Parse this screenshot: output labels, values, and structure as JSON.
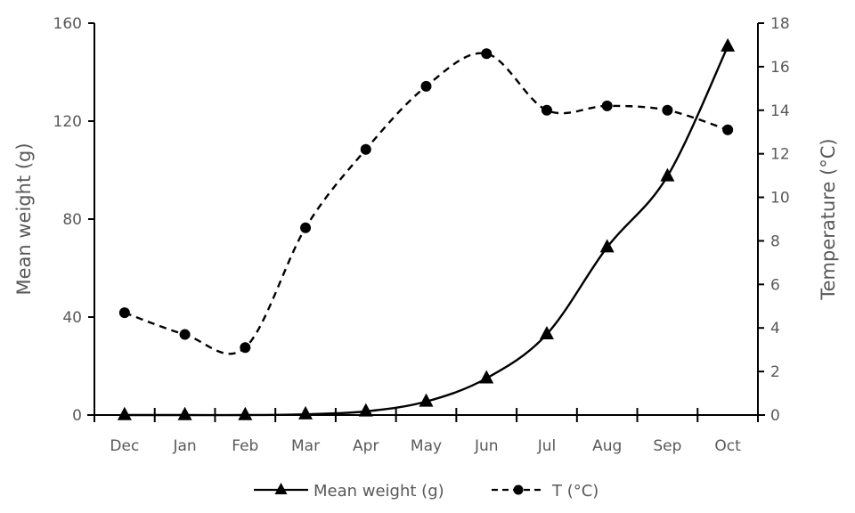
{
  "chart_data": {
    "type": "line",
    "title": "",
    "categories": [
      "Dec",
      "Jan",
      "Feb",
      "Mar",
      "Apr",
      "May",
      "Jun",
      "Jul",
      "Aug",
      "Sep",
      "Oct"
    ],
    "series": [
      {
        "name": "Mean weight (g)",
        "axis": "left",
        "marker": "triangle",
        "line_style": "solid",
        "smooth": true,
        "values": [
          0,
          0,
          0,
          0.3,
          1.5,
          5.5,
          15,
          33,
          68.5,
          97.5,
          150.5
        ]
      },
      {
        "name": "T (°C)",
        "axis": "right",
        "marker": "circle",
        "line_style": "dashed",
        "smooth": true,
        "values": [
          4.7,
          3.7,
          3.1,
          8.6,
          12.2,
          15.1,
          16.6,
          14.0,
          14.2,
          14.0,
          13.1
        ]
      }
    ],
    "ylabel": "Mean weight (g)",
    "y2label": "Temperature (°C)",
    "xlabel": "",
    "ylim": [
      0,
      160
    ],
    "y2lim": [
      0,
      18
    ],
    "yticks": [
      0,
      40,
      80,
      120,
      160
    ],
    "y2ticks": [
      0,
      2,
      4,
      6,
      8,
      10,
      12,
      14,
      16,
      18
    ],
    "grid": false,
    "legend_position": "bottom",
    "colors": {
      "line": "#000000",
      "text": "#595959",
      "axis": "#000000"
    }
  }
}
